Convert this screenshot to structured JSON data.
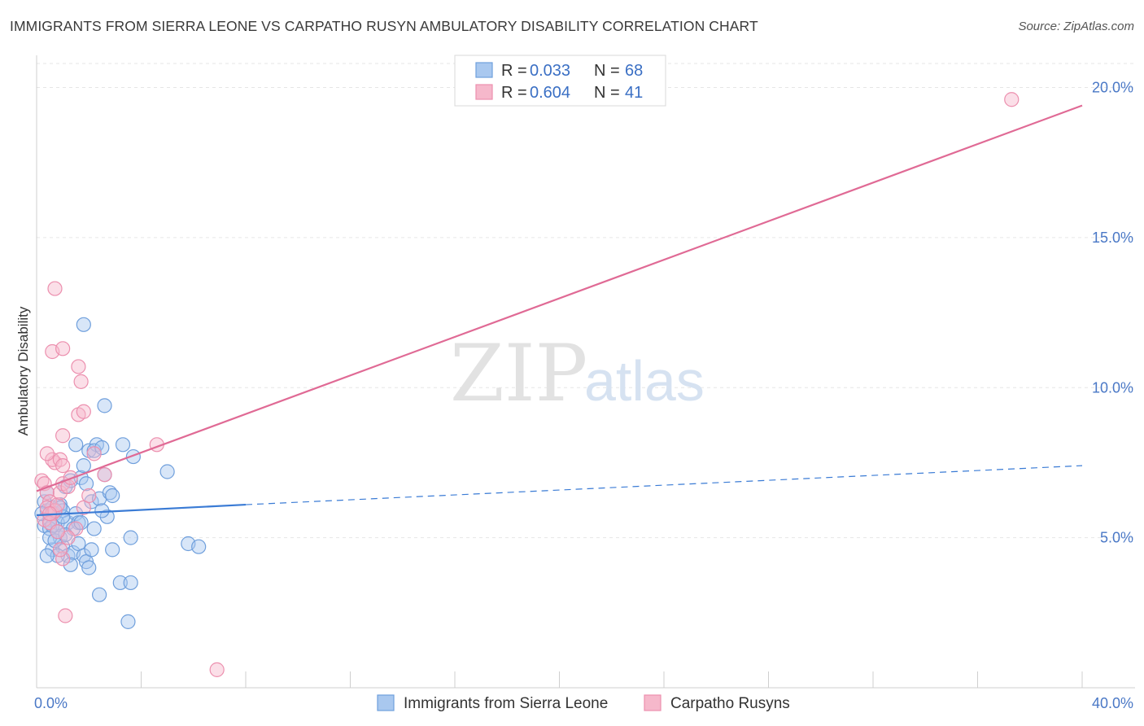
{
  "title": "IMMIGRANTS FROM SIERRA LEONE VS CARPATHO RUSYN AMBULATORY DISABILITY CORRELATION CHART",
  "source": "Source: ZipAtlas.com",
  "watermark": {
    "part1": "ZIP",
    "part2": "atlas"
  },
  "colors": {
    "blue_fill": "#a9c8ef",
    "blue_stroke": "#6f9fdc",
    "blue_line": "#3a7bd5",
    "pink_fill": "#f6b8cb",
    "pink_stroke": "#ec8fae",
    "pink_line": "#e06a95",
    "tick_color": "#4a78c6",
    "grid": "#e6e6e6"
  },
  "legend": {
    "rows": [
      {
        "r_label": "R =",
        "r_value": "0.033",
        "n_label": "N =",
        "n_value": "68"
      },
      {
        "r_label": "R =",
        "r_value": "0.604",
        "n_label": "N =",
        "n_value": "41"
      }
    ]
  },
  "chart_data": {
    "type": "scatter",
    "xlabel": "",
    "ylabel": "Ambulatory Disability",
    "xlim": [
      0,
      40
    ],
    "ylim": [
      0,
      20.8
    ],
    "x_ticks": [
      {
        "value": 0,
        "label": "0.0%"
      },
      {
        "value": 40,
        "label": "40.0%"
      }
    ],
    "y_ticks": [
      {
        "value": 5,
        "label": "5.0%"
      },
      {
        "value": 10,
        "label": "10.0%"
      },
      {
        "value": 15,
        "label": "15.0%"
      },
      {
        "value": 20,
        "label": "20.0%"
      }
    ],
    "grid": true,
    "legend_position": "bottom-center",
    "series": [
      {
        "name": "Immigrants from Sierra Leone",
        "color": "blue",
        "trend": {
          "x0": 0,
          "y0": 5.75,
          "x1": 8,
          "y1": 6.1,
          "dashed_to_x": 40,
          "dashed_to_y": 7.4
        },
        "points": [
          [
            0.3,
            6.2
          ],
          [
            0.4,
            5.9
          ],
          [
            0.5,
            5.6
          ],
          [
            0.3,
            5.4
          ],
          [
            0.6,
            6.0
          ],
          [
            0.7,
            5.8
          ],
          [
            0.8,
            5.5
          ],
          [
            0.5,
            5.3
          ],
          [
            0.4,
            6.5
          ],
          [
            0.9,
            6.1
          ],
          [
            1.0,
            5.9
          ],
          [
            1.2,
            5.5
          ],
          [
            1.1,
            6.7
          ],
          [
            1.3,
            6.9
          ],
          [
            1.5,
            5.8
          ],
          [
            1.6,
            5.5
          ],
          [
            1.4,
            5.3
          ],
          [
            1.7,
            7.0
          ],
          [
            1.8,
            7.4
          ],
          [
            2.0,
            7.9
          ],
          [
            1.9,
            6.8
          ],
          [
            2.1,
            6.2
          ],
          [
            2.3,
            8.1
          ],
          [
            1.5,
            8.1
          ],
          [
            2.2,
            7.9
          ],
          [
            2.5,
            8.0
          ],
          [
            2.6,
            7.1
          ],
          [
            2.4,
            6.3
          ],
          [
            2.8,
            6.5
          ],
          [
            2.9,
            6.4
          ],
          [
            2.7,
            5.7
          ],
          [
            3.3,
            8.1
          ],
          [
            3.7,
            7.7
          ],
          [
            1.8,
            12.1
          ],
          [
            2.6,
            9.4
          ],
          [
            5.0,
            7.2
          ],
          [
            0.9,
            5.0
          ],
          [
            1.0,
            4.7
          ],
          [
            1.2,
            4.4
          ],
          [
            0.6,
            4.6
          ],
          [
            0.8,
            4.4
          ],
          [
            1.4,
            4.5
          ],
          [
            1.3,
            4.1
          ],
          [
            1.6,
            4.8
          ],
          [
            1.8,
            4.4
          ],
          [
            1.9,
            4.2
          ],
          [
            2.0,
            4.0
          ],
          [
            2.1,
            4.6
          ],
          [
            0.5,
            5.0
          ],
          [
            0.7,
            4.9
          ],
          [
            0.6,
            5.4
          ],
          [
            1.1,
            5.1
          ],
          [
            2.2,
            5.3
          ],
          [
            2.9,
            4.6
          ],
          [
            3.2,
            3.5
          ],
          [
            3.6,
            3.5
          ],
          [
            2.4,
            3.1
          ],
          [
            3.5,
            2.2
          ],
          [
            3.6,
            5.0
          ],
          [
            5.8,
            4.8
          ],
          [
            6.2,
            4.7
          ],
          [
            1.0,
            5.7
          ],
          [
            0.8,
            5.2
          ],
          [
            0.2,
            5.8
          ],
          [
            0.4,
            4.4
          ],
          [
            0.9,
            6.0
          ],
          [
            1.7,
            5.5
          ],
          [
            2.5,
            5.9
          ]
        ]
      },
      {
        "name": "Carpatho Rusyns",
        "color": "pink",
        "trend": {
          "x0": 0,
          "y0": 6.55,
          "x1": 40,
          "y1": 19.4
        },
        "points": [
          [
            0.2,
            6.9
          ],
          [
            0.3,
            6.8
          ],
          [
            0.4,
            6.5
          ],
          [
            0.5,
            6.2
          ],
          [
            0.4,
            6.0
          ],
          [
            0.6,
            5.8
          ],
          [
            0.3,
            5.6
          ],
          [
            0.5,
            5.5
          ],
          [
            0.7,
            5.9
          ],
          [
            0.8,
            6.1
          ],
          [
            0.9,
            6.5
          ],
          [
            1.0,
            6.8
          ],
          [
            0.7,
            7.5
          ],
          [
            0.6,
            7.6
          ],
          [
            0.9,
            7.6
          ],
          [
            1.0,
            7.4
          ],
          [
            0.4,
            7.8
          ],
          [
            1.2,
            6.7
          ],
          [
            1.3,
            7.0
          ],
          [
            1.0,
            8.4
          ],
          [
            1.6,
            10.7
          ],
          [
            1.7,
            10.2
          ],
          [
            1.6,
            9.1
          ],
          [
            1.8,
            9.2
          ],
          [
            0.6,
            11.2
          ],
          [
            1.0,
            11.3
          ],
          [
            0.7,
            13.3
          ],
          [
            2.2,
            7.8
          ],
          [
            2.6,
            7.1
          ],
          [
            4.6,
            8.1
          ],
          [
            1.8,
            6.0
          ],
          [
            2.0,
            6.4
          ],
          [
            1.5,
            5.3
          ],
          [
            1.2,
            5.0
          ],
          [
            1.0,
            4.3
          ],
          [
            0.9,
            4.6
          ],
          [
            1.1,
            2.4
          ],
          [
            6.9,
            0.6
          ],
          [
            37.3,
            19.6
          ],
          [
            0.5,
            5.8
          ],
          [
            0.8,
            5.2
          ]
        ]
      }
    ]
  }
}
